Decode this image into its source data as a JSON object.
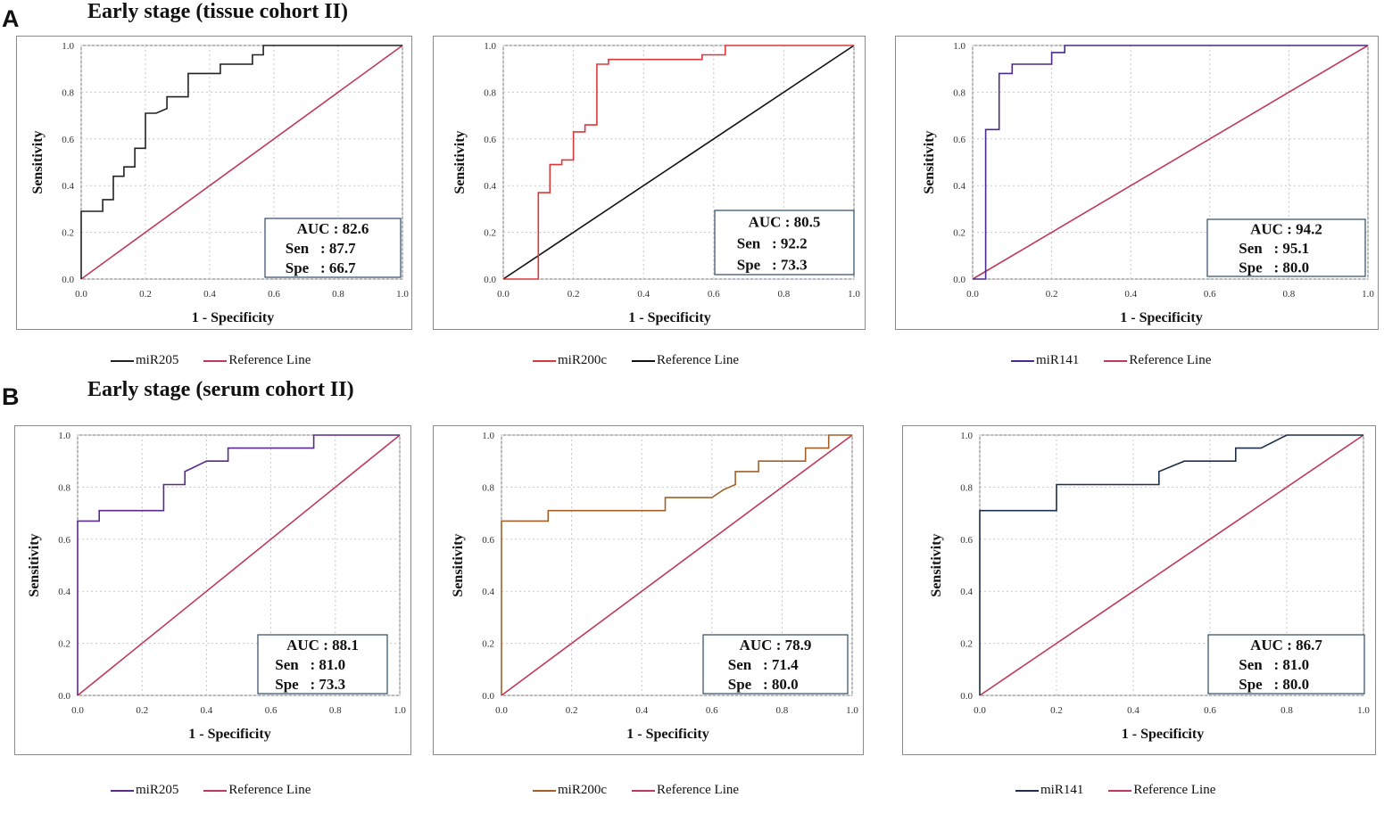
{
  "panels": [
    {
      "letter": "A",
      "title": "Early stage (tissue cohort II)"
    },
    {
      "letter": "B",
      "title": "Early stage (serum cohort II)"
    }
  ],
  "chart_data": [
    {
      "type": "line",
      "xlabel": "1 - Specificity",
      "ylabel": "Sensitivity",
      "xlim": [
        0,
        1
      ],
      "ylim": [
        0,
        1
      ],
      "ticks": [
        "0.0",
        "0.2",
        "0.4",
        "0.6",
        "0.8",
        "1.0"
      ],
      "grid": true,
      "stats": {
        "auc_label": "AUC : 82.6",
        "sen_label": "Sen",
        "sen_value": ": 87.7",
        "spe_label": "Spe",
        "spe_value": ": 66.7"
      },
      "series": [
        {
          "name": "miR205",
          "color": "#222222",
          "x": [
            0,
            0,
            0.067,
            0.067,
            0.1,
            0.1,
            0.133,
            0.133,
            0.167,
            0.167,
            0.2,
            0.2,
            0.233,
            0.267,
            0.267,
            0.333,
            0.333,
            0.433,
            0.433,
            0.533,
            0.533,
            0.567,
            0.567,
            1
          ],
          "y": [
            0,
            0.29,
            0.29,
            0.34,
            0.34,
            0.44,
            0.44,
            0.48,
            0.48,
            0.56,
            0.56,
            0.71,
            0.71,
            0.73,
            0.78,
            0.78,
            0.88,
            0.88,
            0.92,
            0.92,
            0.96,
            0.96,
            1,
            1
          ]
        },
        {
          "name": "Reference Line",
          "color": "#c0395a",
          "x": [
            0,
            1
          ],
          "y": [
            0,
            1
          ]
        }
      ]
    },
    {
      "type": "line",
      "xlabel": "1 - Specificity",
      "ylabel": "Sensitivity",
      "xlim": [
        0,
        1
      ],
      "ylim": [
        0,
        1
      ],
      "ticks": [
        "0.0",
        "0.2",
        "0.4",
        "0.6",
        "0.8",
        "1.0"
      ],
      "grid": true,
      "stats": {
        "auc_label": "AUC : 80.5",
        "sen_label": "Sen",
        "sen_value": ": 92.2",
        "spe_label": "Spe",
        "spe_value": ": 73.3"
      },
      "series": [
        {
          "name": "miR200c",
          "color": "#d9383a",
          "x": [
            0,
            0.1,
            0.1,
            0.133,
            0.133,
            0.167,
            0.167,
            0.2,
            0.2,
            0.233,
            0.233,
            0.267,
            0.267,
            0.3,
            0.3,
            0.567,
            0.567,
            0.633,
            0.633,
            1
          ],
          "y": [
            0,
            0,
            0.37,
            0.37,
            0.49,
            0.49,
            0.51,
            0.51,
            0.63,
            0.63,
            0.66,
            0.66,
            0.92,
            0.92,
            0.94,
            0.94,
            0.96,
            0.96,
            1,
            1
          ]
        },
        {
          "name": "Reference Line",
          "color": "#111111",
          "x": [
            0,
            1
          ],
          "y": [
            0,
            1
          ]
        }
      ]
    },
    {
      "type": "line",
      "xlabel": "1 - Specificity",
      "ylabel": "Sensitivity",
      "xlim": [
        0,
        1
      ],
      "ylim": [
        0,
        1
      ],
      "ticks": [
        "0.0",
        "0.2",
        "0.4",
        "0.6",
        "0.8",
        "1.0"
      ],
      "grid": true,
      "stats": {
        "auc_label": "AUC : 94.2",
        "sen_label": "Sen",
        "sen_value": ": 95.1",
        "spe_label": "Spe",
        "spe_value": ": 80.0"
      },
      "series": [
        {
          "name": "miR141",
          "color": "#4a2a8a",
          "x": [
            0,
            0.033,
            0.033,
            0.067,
            0.067,
            0.1,
            0.1,
            0.2,
            0.2,
            0.233,
            0.233,
            1
          ],
          "y": [
            0,
            0,
            0.64,
            0.64,
            0.88,
            0.88,
            0.92,
            0.92,
            0.97,
            0.97,
            1,
            1
          ]
        },
        {
          "name": "Reference Line",
          "color": "#c0395a",
          "x": [
            0,
            1
          ],
          "y": [
            0,
            1
          ]
        }
      ]
    },
    {
      "type": "line",
      "xlabel": "1 - Specificity",
      "ylabel": "Sensitivity",
      "xlim": [
        0,
        1
      ],
      "ylim": [
        0,
        1
      ],
      "ticks": [
        "0.0",
        "0.2",
        "0.4",
        "0.6",
        "0.8",
        "1.0"
      ],
      "grid": true,
      "stats": {
        "auc_label": "AUC : 88.1",
        "sen_label": "Sen",
        "sen_value": ": 81.0",
        "spe_label": "Spe",
        "spe_value": ": 73.3"
      },
      "series": [
        {
          "name": "miR205",
          "color": "#5a2a8a",
          "x": [
            0,
            0,
            0.067,
            0.067,
            0.267,
            0.267,
            0.333,
            0.333,
            0.367,
            0.4,
            0.467,
            0.467,
            0.733,
            0.733,
            1
          ],
          "y": [
            0,
            0.67,
            0.67,
            0.71,
            0.71,
            0.81,
            0.81,
            0.86,
            0.88,
            0.9,
            0.9,
            0.95,
            0.95,
            1,
            1
          ]
        },
        {
          "name": "Reference Line",
          "color": "#c0395a",
          "x": [
            0,
            1
          ],
          "y": [
            0,
            1
          ]
        }
      ]
    },
    {
      "type": "line",
      "xlabel": "1 - Specificity",
      "ylabel": "Sensitivity",
      "xlim": [
        0,
        1
      ],
      "ylim": [
        0,
        1
      ],
      "ticks": [
        "0.0",
        "0.2",
        "0.4",
        "0.6",
        "0.8",
        "1.0"
      ],
      "grid": true,
      "stats": {
        "auc_label": "AUC : 78.9",
        "sen_label": "Sen",
        "sen_value": ": 71.4",
        "spe_label": "Spe",
        "spe_value": ": 80.0"
      },
      "series": [
        {
          "name": "miR200c",
          "color": "#a0602a",
          "x": [
            0,
            0,
            0.133,
            0.133,
            0.467,
            0.467,
            0.6,
            0.633,
            0.667,
            0.667,
            0.733,
            0.733,
            0.867,
            0.867,
            0.933,
            0.933,
            1
          ],
          "y": [
            0,
            0.67,
            0.67,
            0.71,
            0.71,
            0.76,
            0.76,
            0.79,
            0.81,
            0.86,
            0.86,
            0.9,
            0.9,
            0.95,
            0.95,
            1,
            1
          ]
        },
        {
          "name": "Reference Line",
          "color": "#c0395a",
          "x": [
            0,
            1
          ],
          "y": [
            0,
            1
          ]
        }
      ]
    },
    {
      "type": "line",
      "xlabel": "1 - Specificity",
      "ylabel": "Sensitivity",
      "xlim": [
        0,
        1
      ],
      "ylim": [
        0,
        1
      ],
      "ticks": [
        "0.0",
        "0.2",
        "0.4",
        "0.6",
        "0.8",
        "1.0"
      ],
      "grid": true,
      "stats": {
        "auc_label": "AUC : 86.7",
        "sen_label": "Sen",
        "sen_value": ": 81.0",
        "spe_label": "Spe",
        "spe_value": ": 80.0"
      },
      "series": [
        {
          "name": "miR141",
          "color": "#1d2f4a",
          "x": [
            0,
            0,
            0.1,
            0.2,
            0.2,
            0.467,
            0.467,
            0.533,
            0.667,
            0.667,
            0.733,
            0.8,
            0.8,
            1
          ],
          "y": [
            0,
            0.71,
            0.71,
            0.71,
            0.81,
            0.81,
            0.86,
            0.9,
            0.9,
            0.95,
            0.95,
            1,
            1,
            1
          ]
        },
        {
          "name": "Reference Line",
          "color": "#c0395a",
          "x": [
            0,
            1
          ],
          "y": [
            0,
            1
          ]
        }
      ]
    }
  ]
}
